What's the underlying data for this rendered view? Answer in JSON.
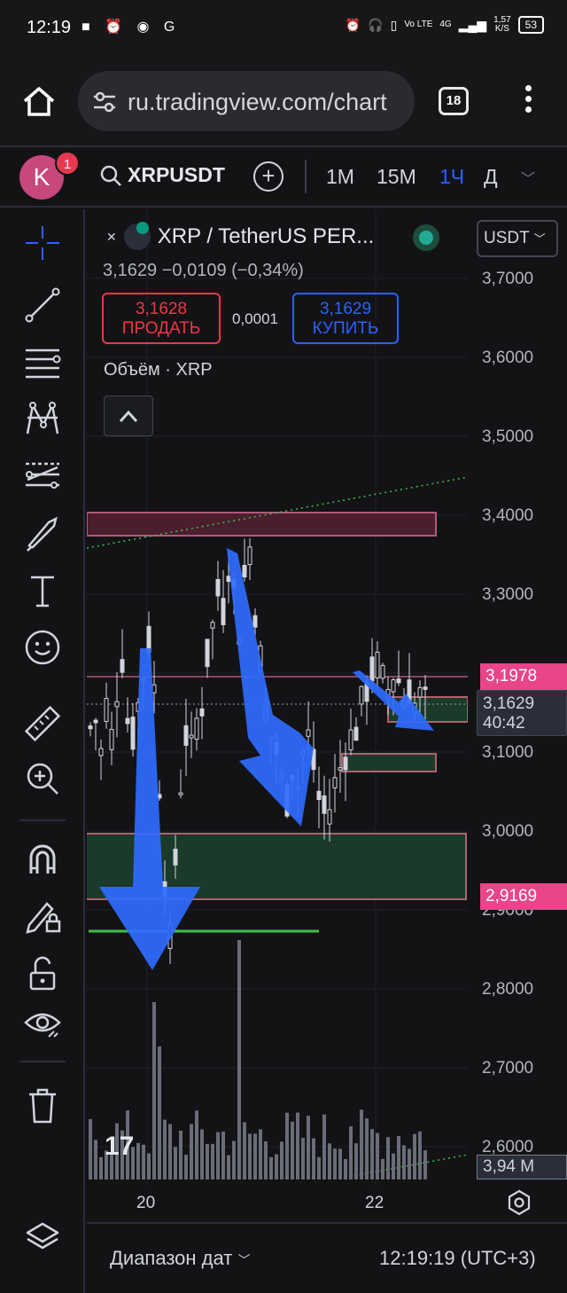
{
  "status_bar": {
    "time": "12:19",
    "network": "4G",
    "volte": "Vo LTE",
    "speed": "1,57",
    "speed_unit": "K/S",
    "battery": "53"
  },
  "browser": {
    "url": "ru.tradingview.com/chart",
    "tab_count": "18"
  },
  "header": {
    "avatar_letter": "K",
    "notification_count": "1",
    "symbol": "XRPUSDT",
    "timeframes": [
      {
        "label": "1M",
        "active": false
      },
      {
        "label": "15M",
        "active": false
      },
      {
        "label": "1Ч",
        "active": true
      },
      {
        "label": "Д",
        "active": false
      }
    ]
  },
  "legend": {
    "title": "XRP / TetherUS PER...",
    "price_line": "3,1629  −0,0109 (−0,34%)",
    "sell_price": "3,1628",
    "sell_label": "ПРОДАТЬ",
    "spread": "0,0001",
    "buy_price": "3,1629",
    "buy_label": "КУПИТЬ",
    "volume_label": "Объём · XRP"
  },
  "price_scale": {
    "currency": "USDT",
    "labels": [
      "3,7000",
      "3,6000",
      "3,5000",
      "3,4000",
      "3,3000",
      "3,1000",
      "3,0000",
      "2,9000",
      "2,8000",
      "2,7000",
      "2,6000"
    ],
    "tag_upper": "3,1978",
    "current_price": "3,1629",
    "countdown": "40:42",
    "tag_lower": "2,9169",
    "volume_value": "3,94 M"
  },
  "time_axis": {
    "labels": [
      "20",
      "22"
    ]
  },
  "bottom_bar": {
    "range_label": "Диапазон дат",
    "clock": "12:19:19 (UTC+3)"
  },
  "colors": {
    "accent": "#2962ff",
    "sell": "#f23645",
    "tag_pink": "#e8458a",
    "zone_red": "#4a1e2e",
    "zone_green": "#1b3a2a",
    "candle": "#d1d4dc",
    "arrow": "#2f6bff"
  },
  "chart_data": {
    "type": "candlestick",
    "symbol": "XRPUSDT",
    "interval": "1Ч",
    "ylim": [
      2.55,
      3.75
    ],
    "current_price": 3.1629,
    "marked_levels": [
      3.1978,
      2.9169
    ],
    "x_ticks": [
      "20",
      "22"
    ]
  }
}
